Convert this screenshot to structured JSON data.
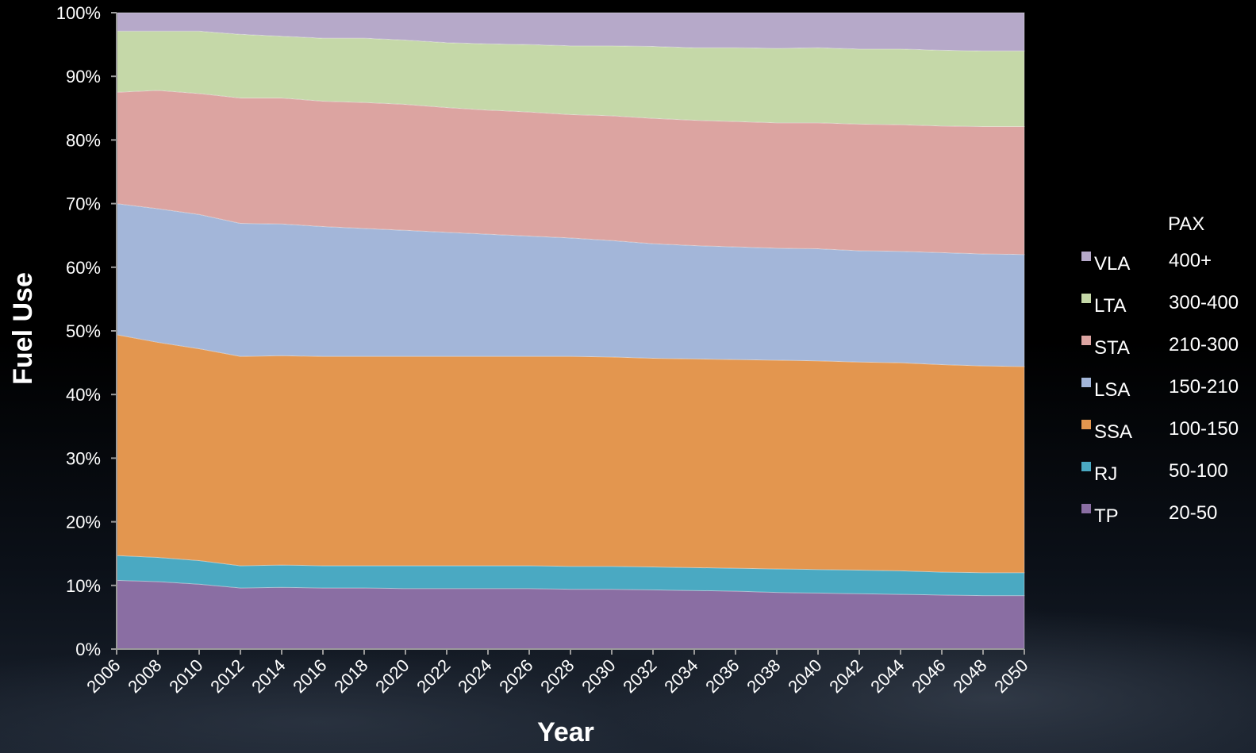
{
  "chart_data": {
    "type": "area",
    "stacked": true,
    "normalized_percent": true,
    "xlabel": "Year",
    "ylabel": "Fuel Use",
    "ylim": [
      0,
      100
    ],
    "y_ticks": [
      "0%",
      "10%",
      "20%",
      "30%",
      "40%",
      "50%",
      "60%",
      "70%",
      "80%",
      "90%",
      "100%"
    ],
    "x": [
      2006,
      2008,
      2010,
      2012,
      2014,
      2016,
      2018,
      2020,
      2022,
      2024,
      2026,
      2028,
      2030,
      2032,
      2034,
      2036,
      2038,
      2040,
      2042,
      2044,
      2046,
      2048,
      2050
    ],
    "x_tick_labels": [
      "2006",
      "2008",
      "2010",
      "2012",
      "2014",
      "2016",
      "2018",
      "2020",
      "2022",
      "2024",
      "2026",
      "2028",
      "2030",
      "2032",
      "2034",
      "2036",
      "2038",
      "2040",
      "2042",
      "2044",
      "2046",
      "2048",
      "2050"
    ],
    "series": [
      {
        "name": "TP",
        "color": "#8a6ea3",
        "values": [
          10.8,
          10.6,
          10.2,
          9.6,
          9.7,
          9.6,
          9.6,
          9.5,
          9.5,
          9.5,
          9.5,
          9.4,
          9.4,
          9.3,
          9.2,
          9.1,
          8.9,
          8.8,
          8.7,
          8.6,
          8.5,
          8.4,
          8.4
        ]
      },
      {
        "name": "RJ",
        "color": "#4aa9c2",
        "values": [
          3.9,
          3.8,
          3.7,
          3.5,
          3.5,
          3.5,
          3.5,
          3.6,
          3.6,
          3.6,
          3.6,
          3.6,
          3.6,
          3.6,
          3.6,
          3.6,
          3.7,
          3.7,
          3.7,
          3.7,
          3.6,
          3.6,
          3.6
        ]
      },
      {
        "name": "SSA",
        "color": "#e3964f",
        "values": [
          34.7,
          33.8,
          33.3,
          32.9,
          32.9,
          32.9,
          32.9,
          32.9,
          32.9,
          32.9,
          32.9,
          33.0,
          32.9,
          32.8,
          32.8,
          32.8,
          32.8,
          32.8,
          32.7,
          32.7,
          32.6,
          32.5,
          32.4
        ]
      },
      {
        "name": "LSA",
        "color": "#a3b6d9",
        "values": [
          20.6,
          21.0,
          21.1,
          20.9,
          20.7,
          20.4,
          20.1,
          19.8,
          19.5,
          19.2,
          18.9,
          18.6,
          18.3,
          18.0,
          17.8,
          17.7,
          17.6,
          17.6,
          17.5,
          17.5,
          17.6,
          17.6,
          17.6
        ]
      },
      {
        "name": "STA",
        "color": "#dca4a1",
        "values": [
          17.5,
          18.6,
          19.0,
          19.7,
          19.8,
          19.7,
          19.8,
          19.8,
          19.6,
          19.5,
          19.5,
          19.4,
          19.6,
          19.7,
          19.7,
          19.7,
          19.7,
          19.8,
          19.9,
          19.9,
          19.9,
          20.0,
          20.1
        ]
      },
      {
        "name": "LTA",
        "color": "#c5d8a8",
        "values": [
          9.6,
          9.3,
          9.8,
          10.0,
          9.7,
          9.9,
          10.1,
          10.1,
          10.2,
          10.4,
          10.6,
          10.8,
          11.0,
          11.3,
          11.4,
          11.6,
          11.7,
          11.8,
          11.8,
          11.9,
          11.9,
          11.9,
          11.9
        ]
      },
      {
        "name": "VLA",
        "color": "#b6a9c9",
        "values": [
          2.9,
          2.9,
          2.9,
          3.4,
          3.7,
          4.0,
          4.0,
          4.3,
          4.7,
          4.9,
          5.0,
          5.2,
          5.2,
          5.3,
          5.5,
          5.5,
          5.6,
          5.5,
          5.7,
          5.7,
          5.9,
          6.0,
          6.0
        ]
      }
    ]
  },
  "legend": {
    "header": "PAX",
    "items": [
      {
        "name": "VLA",
        "pax": "400+",
        "color": "#b6a9c9"
      },
      {
        "name": "LTA",
        "pax": "300-400",
        "color": "#c5d8a8"
      },
      {
        "name": "STA",
        "pax": "210-300",
        "color": "#dca4a1"
      },
      {
        "name": "LSA",
        "pax": "150-210",
        "color": "#a3b6d9"
      },
      {
        "name": "SSA",
        "pax": "100-150",
        "color": "#e3964f"
      },
      {
        "name": "RJ",
        "pax": "50-100",
        "color": "#4aa9c2"
      },
      {
        "name": "TP",
        "pax": "20-50",
        "color": "#8a6ea3"
      }
    ]
  }
}
